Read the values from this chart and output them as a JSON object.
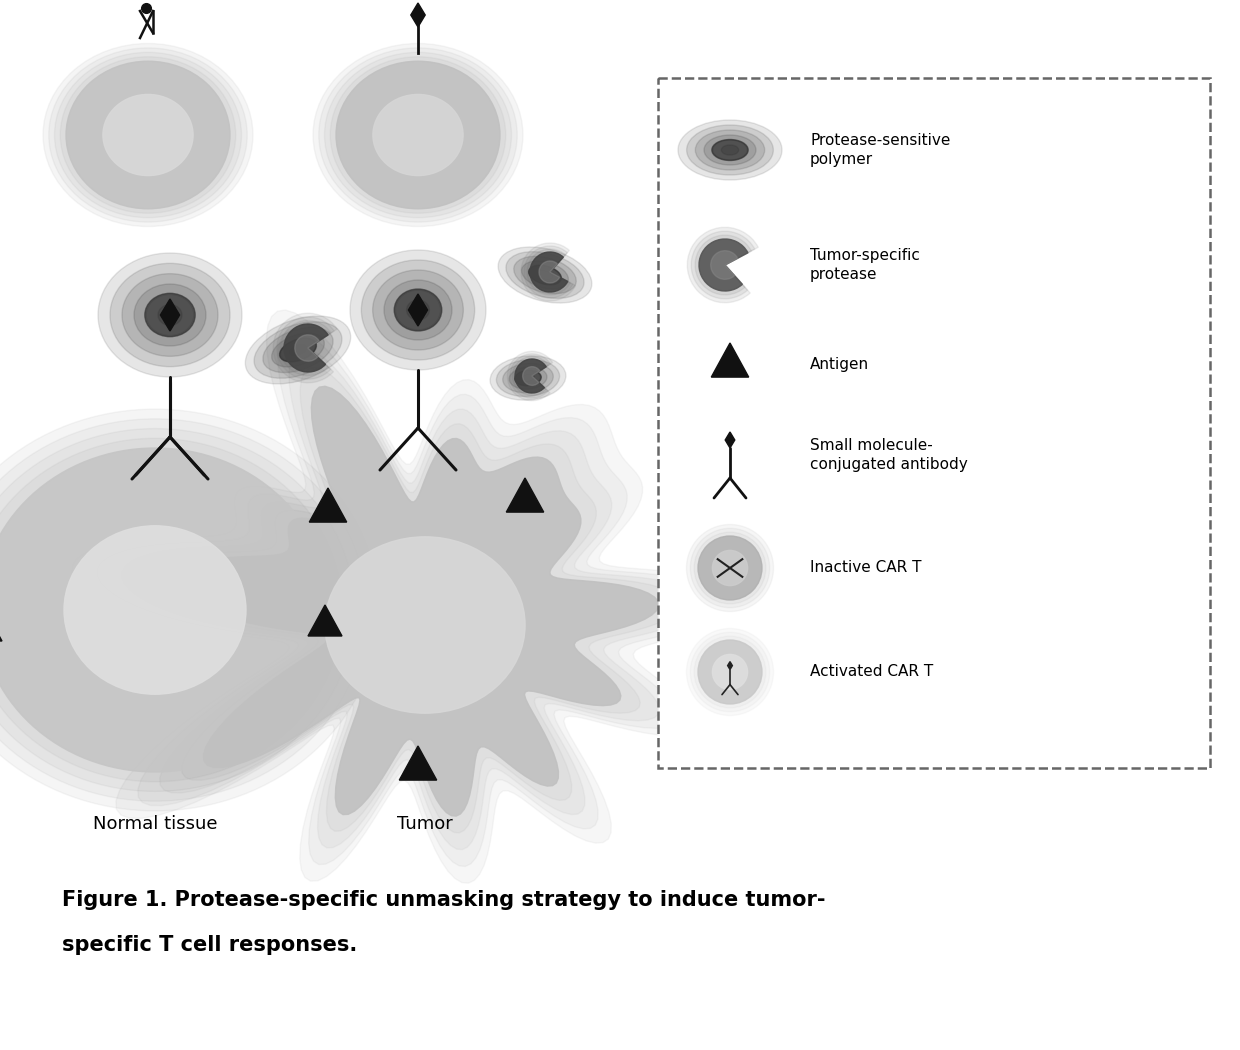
{
  "bg_color": "#ffffff",
  "title_line1": "Figure 1. Protease-specific unmasking strategy to induce tumor-",
  "title_line2": "specific T cell responses.",
  "title_fontsize": 15,
  "normal_tissue_label": "Normal tissue",
  "tumor_label": "Tumor",
  "label_fontsize": 13,
  "legend_fontsize": 11,
  "legend_items": [
    "Protease-sensitive\npolymer",
    "Tumor-specific\nprotease",
    "Antigen",
    "Small molecule-\nconjugated antibody",
    "Inactive CAR T",
    "Activated CAR T"
  ]
}
